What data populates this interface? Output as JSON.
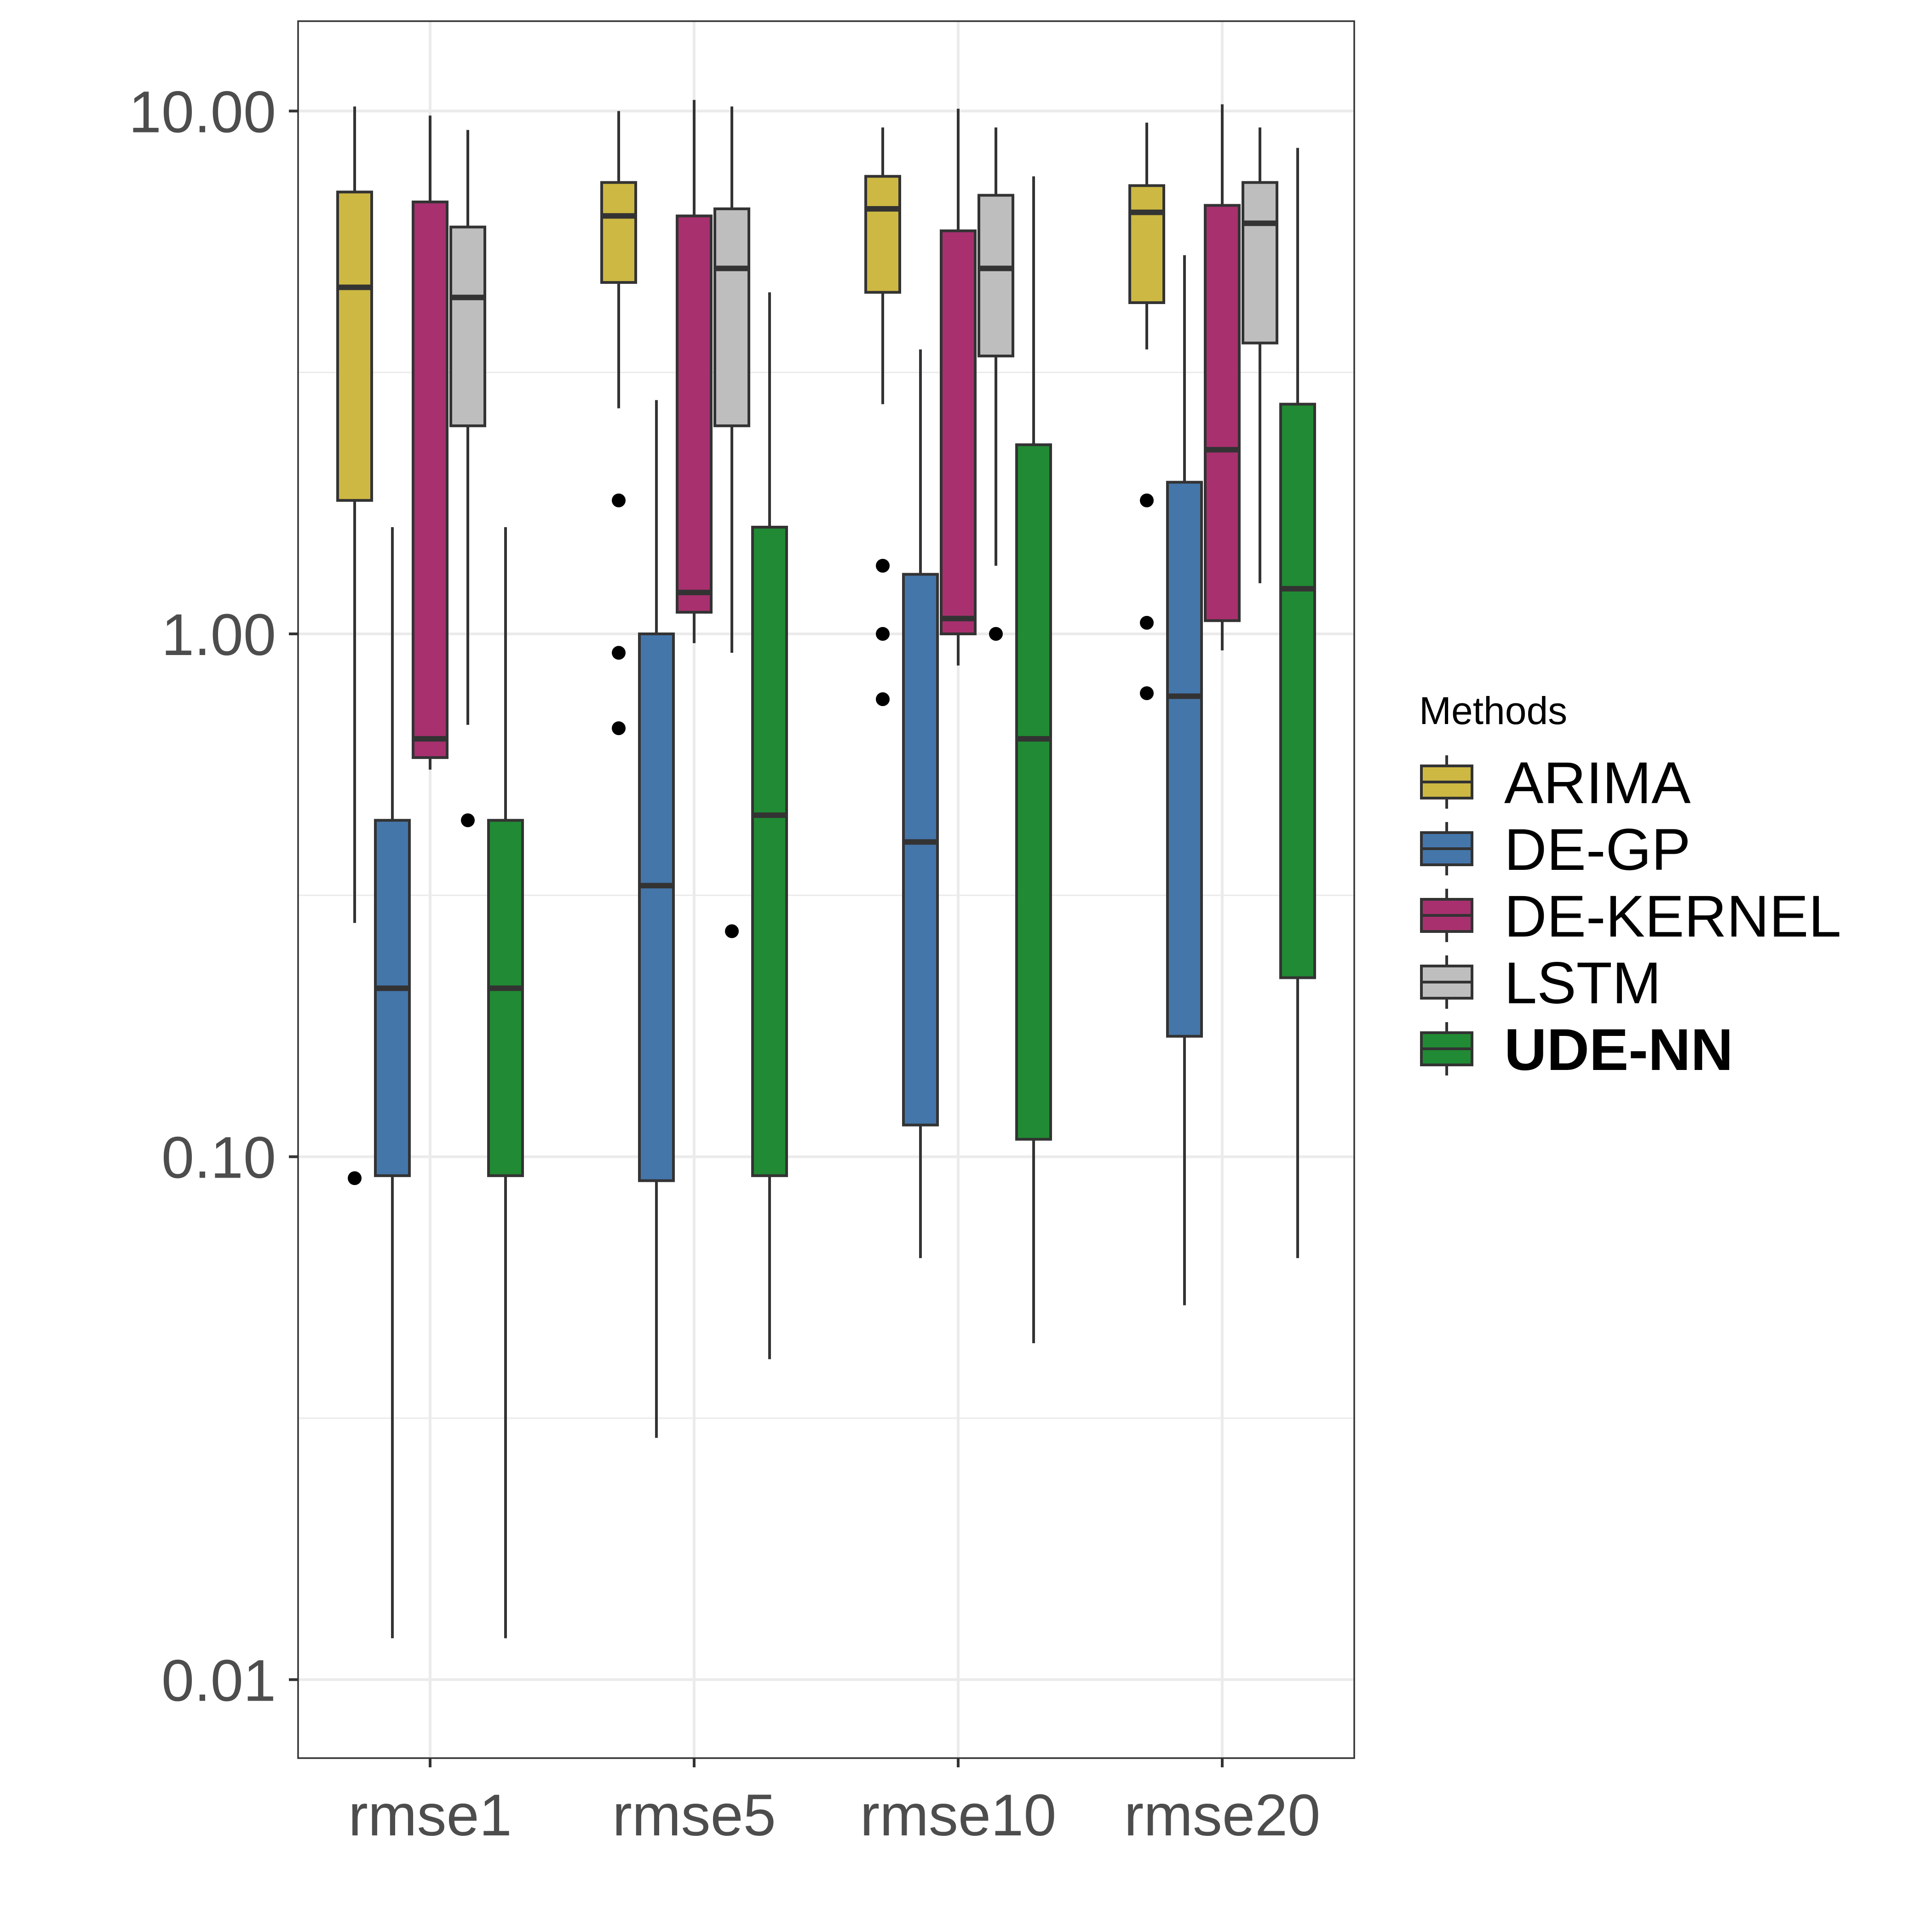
{
  "chart_data": {
    "type": "boxplot",
    "title": "",
    "xlabel": "",
    "ylabel": "",
    "y_scale": "log10",
    "ylim": [
      0.006,
      16
    ],
    "y_ticks": [
      {
        "value": 0.01,
        "label": "0.01"
      },
      {
        "value": 0.1,
        "label": "0.10"
      },
      {
        "value": 1,
        "label": "1.00"
      },
      {
        "value": 10,
        "label": "10.00"
      }
    ],
    "grid": true,
    "categories": [
      "rmse1",
      "rmse5",
      "rmse10",
      "rmse20"
    ],
    "legend": {
      "title": "Methods",
      "placement": "right",
      "entries": [
        {
          "label": "ARIMA",
          "bold": false
        },
        {
          "label": "DE-GP",
          "bold": false
        },
        {
          "label": "DE-KERNEL",
          "bold": false
        },
        {
          "label": "LSTM",
          "bold": false
        },
        {
          "label": "UDE-NN",
          "bold": true
        }
      ]
    },
    "series": [
      {
        "name": "ARIMA",
        "color": "#CDB843",
        "boxes": [
          {
            "lower": 0.28,
            "q1": 1.8,
            "median": 4.6,
            "q3": 7.0,
            "upper": 10.2,
            "outliers": [
              0.091
            ]
          },
          {
            "lower": 2.7,
            "q1": 4.7,
            "median": 6.3,
            "q3": 7.3,
            "upper": 10.0,
            "outliers": [
              1.8,
              0.92,
              0.66
            ]
          },
          {
            "lower": 2.75,
            "q1": 4.5,
            "median": 6.5,
            "q3": 7.5,
            "upper": 9.3,
            "outliers": [
              1.35,
              1.0,
              0.75
            ]
          },
          {
            "lower": 3.5,
            "q1": 4.3,
            "median": 6.4,
            "q3": 7.2,
            "upper": 9.5,
            "outliers": [
              1.8,
              1.05,
              0.77
            ]
          }
        ]
      },
      {
        "name": "DE-GP",
        "color": "#4476AA",
        "boxes": [
          {
            "lower": 0.012,
            "q1": 0.092,
            "median": 0.21,
            "q3": 0.44,
            "upper": 1.6,
            "outliers": []
          },
          {
            "lower": 0.029,
            "q1": 0.09,
            "median": 0.33,
            "q3": 1.0,
            "upper": 2.8,
            "outliers": []
          },
          {
            "lower": 0.064,
            "q1": 0.115,
            "median": 0.4,
            "q3": 1.3,
            "upper": 3.5,
            "outliers": []
          },
          {
            "lower": 0.052,
            "q1": 0.17,
            "median": 0.76,
            "q3": 1.95,
            "upper": 5.3,
            "outliers": []
          }
        ]
      },
      {
        "name": "DE-KERNEL",
        "color": "#A8306F",
        "boxes": [
          {
            "lower": 0.55,
            "q1": 0.58,
            "median": 0.63,
            "q3": 6.7,
            "upper": 9.8,
            "outliers": []
          },
          {
            "lower": 0.96,
            "q1": 1.1,
            "median": 1.2,
            "q3": 6.3,
            "upper": 10.5,
            "outliers": []
          },
          {
            "lower": 0.87,
            "q1": 1.0,
            "median": 1.07,
            "q3": 5.9,
            "upper": 10.1,
            "outliers": []
          },
          {
            "lower": 0.93,
            "q1": 1.06,
            "median": 2.25,
            "q3": 6.6,
            "upper": 10.3,
            "outliers": []
          }
        ]
      },
      {
        "name": "LSTM",
        "color": "#BEBEBE",
        "boxes": [
          {
            "lower": 0.67,
            "q1": 2.5,
            "median": 4.4,
            "q3": 6.0,
            "upper": 9.2,
            "outliers": [
              0.44
            ]
          },
          {
            "lower": 0.92,
            "q1": 2.5,
            "median": 5.0,
            "q3": 6.5,
            "upper": 10.2,
            "outliers": [
              0.27
            ]
          },
          {
            "lower": 1.35,
            "q1": 3.4,
            "median": 5.0,
            "q3": 6.9,
            "upper": 9.3,
            "outliers": [
              1.0
            ]
          },
          {
            "lower": 1.25,
            "q1": 3.6,
            "median": 6.1,
            "q3": 7.3,
            "upper": 9.3,
            "outliers": []
          }
        ]
      },
      {
        "name": "UDE-NN",
        "color": "#218A34",
        "boxes": [
          {
            "lower": 0.012,
            "q1": 0.092,
            "median": 0.21,
            "q3": 0.44,
            "upper": 1.6,
            "outliers": []
          },
          {
            "lower": 0.041,
            "q1": 0.092,
            "median": 0.45,
            "q3": 1.6,
            "upper": 4.5,
            "outliers": []
          },
          {
            "lower": 0.044,
            "q1": 0.108,
            "median": 0.63,
            "q3": 2.3,
            "upper": 7.5,
            "outliers": []
          },
          {
            "lower": 0.064,
            "q1": 0.22,
            "median": 1.22,
            "q3": 2.75,
            "upper": 8.5,
            "outliers": []
          }
        ]
      }
    ]
  }
}
